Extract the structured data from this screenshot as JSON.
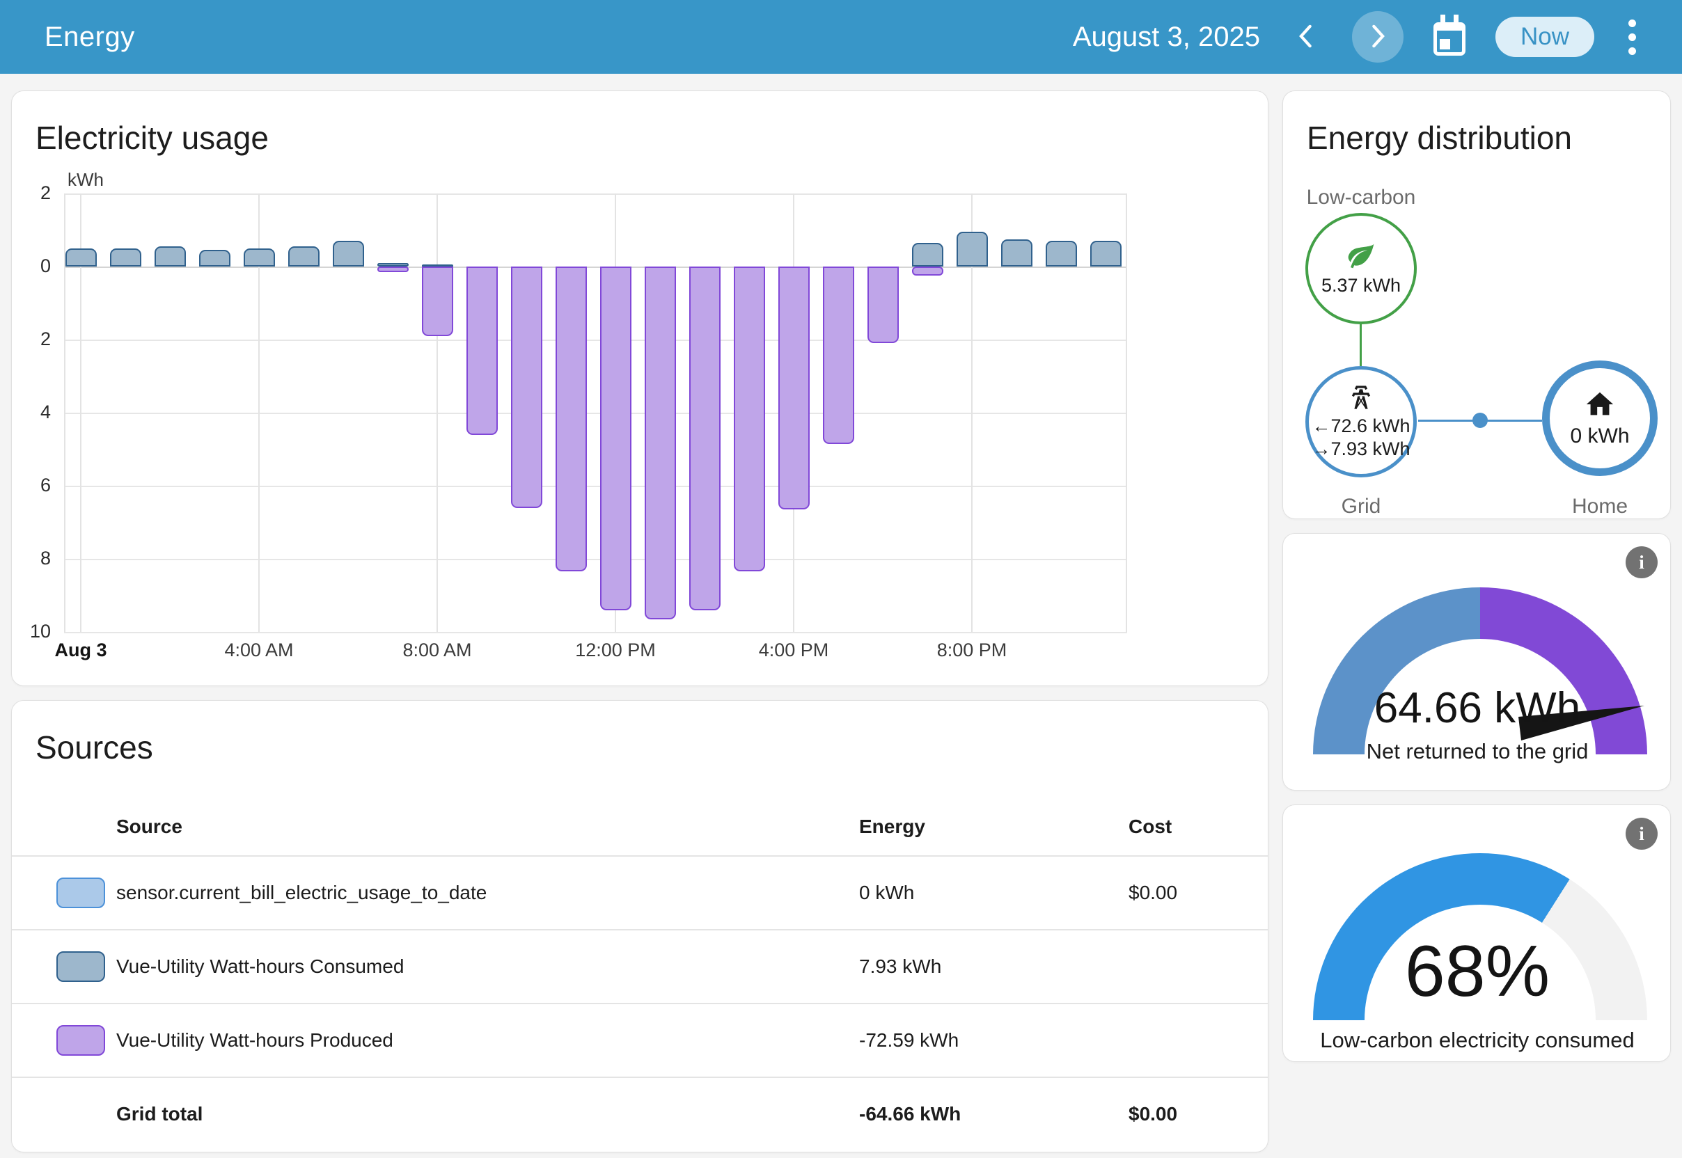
{
  "header": {
    "title": "Energy",
    "date": "August 3, 2025",
    "now_label": "Now"
  },
  "colors": {
    "header_bg": "#3896c8",
    "now_pill_bg": "#dceef8",
    "now_pill_text": "#3892c5",
    "consumption_fill": "#9db7cc",
    "consumption_border": "#30618d",
    "production_fill": "#bfa5e9",
    "production_border": "#8148d8",
    "stat_blue_fill": "#abc9e9",
    "stat_blue_border": "#4c91d9",
    "green": "#43a047",
    "circle_blue": "#4a90c9",
    "text_purple": "#8353d1",
    "text_blue": "#4193d0",
    "gauge1_left": "#5c92c9",
    "gauge1_right": "#8149d6",
    "gauge2_color": "#3095e3",
    "gauge2_track": "#f2f2f2",
    "info_bg": "#727272"
  },
  "chart_data": {
    "type": "bar",
    "title": "Electricity usage",
    "unit": "kWh",
    "ylim": [
      -10,
      2
    ],
    "yticks": [
      2,
      0,
      -2,
      -4,
      -6,
      -8,
      -10
    ],
    "categories": [
      "12 AM",
      "1 AM",
      "2 AM",
      "3 AM",
      "4 AM",
      "5 AM",
      "6 AM",
      "7 AM",
      "8 AM",
      "9 AM",
      "10 AM",
      "11 AM",
      "12 PM",
      "1 PM",
      "2 PM",
      "3 PM",
      "4 PM",
      "5 PM",
      "6 PM",
      "7 PM",
      "8 PM",
      "9 PM",
      "10 PM",
      "11 PM"
    ],
    "xticks": [
      {
        "label": "Aug 3",
        "hour": 0,
        "bold": true
      },
      {
        "label": "4:00 AM",
        "hour": 4,
        "bold": false
      },
      {
        "label": "8:00 AM",
        "hour": 8,
        "bold": false
      },
      {
        "label": "12:00 PM",
        "hour": 12,
        "bold": false
      },
      {
        "label": "4:00 PM",
        "hour": 16,
        "bold": false
      },
      {
        "label": "8:00 PM",
        "hour": 20,
        "bold": false
      }
    ],
    "series": [
      {
        "name": "Vue-Utility Watt-hours Consumed",
        "values": [
          0.5,
          0.5,
          0.55,
          0.45,
          0.5,
          0.55,
          0.7,
          0.1,
          0.05,
          0,
          0,
          0,
          0,
          0,
          0,
          0,
          0,
          0,
          0,
          0.65,
          0.95,
          0.75,
          0.7,
          0.7
        ]
      },
      {
        "name": "Vue-Utility Watt-hours Produced",
        "values": [
          0,
          0,
          0,
          0,
          0,
          0,
          0,
          -0.15,
          -1.9,
          -4.6,
          -6.6,
          -8.35,
          -9.4,
          -9.65,
          -9.4,
          -8.35,
          -6.65,
          -4.85,
          -2.1,
          -0.25,
          0,
          0,
          0,
          0
        ]
      }
    ],
    "legend_position": "none",
    "grid": true
  },
  "distribution": {
    "title": "Energy distribution",
    "low_carbon": {
      "label": "Low-carbon",
      "value": "5.37 kWh"
    },
    "grid": {
      "label": "Grid",
      "return_value": "←72.6 kWh",
      "consume_value": "→7.93 kWh"
    },
    "home": {
      "label": "Home",
      "value": "0 kWh"
    }
  },
  "gauges": [
    {
      "value": "64.66 kWh",
      "caption": "Net returned to the grid"
    },
    {
      "value": "68%",
      "caption": "Low-carbon electricity consumed",
      "percent": 68
    }
  ],
  "sources": {
    "title": "Sources",
    "columns": [
      "Source",
      "Energy",
      "Cost"
    ],
    "rows": [
      {
        "name": "sensor.current_bill_electric_usage_to_date",
        "energy": "0 kWh",
        "cost": "$0.00",
        "swatch": "stat_blue"
      },
      {
        "name": "Vue-Utility Watt-hours Consumed",
        "energy": "7.93 kWh",
        "cost": "",
        "swatch": "consumption"
      },
      {
        "name": "Vue-Utility Watt-hours Produced",
        "energy": "-72.59 kWh",
        "cost": "",
        "swatch": "production"
      }
    ],
    "total": {
      "name": "Grid total",
      "energy": "-64.66 kWh",
      "cost": "$0.00"
    }
  }
}
